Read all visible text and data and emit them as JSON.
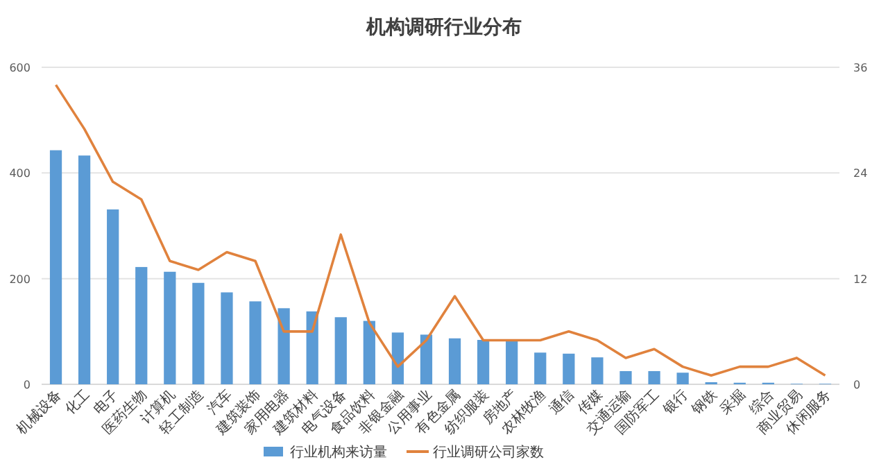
{
  "chart_data": {
    "type": "bar",
    "title": "机构调研行业分布",
    "categories": [
      "机械设备",
      "化工",
      "电子",
      "医药生物",
      "计算机",
      "轻工制造",
      "汽车",
      "建筑装饰",
      "家用电器",
      "建筑材料",
      "电气设备",
      "食品饮料",
      "非银金融",
      "公用事业",
      "有色金属",
      "纺织服装",
      "房地产",
      "农林牧渔",
      "通信",
      "传媒",
      "交通运输",
      "国防军工",
      "银行",
      "钢铁",
      "采掘",
      "综合",
      "商业贸易",
      "休闲服务"
    ],
    "series": [
      {
        "name": "行业机构来访量",
        "color": "#5b9bd5",
        "values": [
          443,
          433,
          331,
          222,
          213,
          192,
          174,
          157,
          144,
          138,
          127,
          120,
          98,
          94,
          87,
          84,
          84,
          60,
          58,
          51,
          25,
          25,
          22,
          4,
          3,
          3,
          1,
          1
        ]
      },
      {
        "name": "行业调研公司家数",
        "type": "line",
        "axis": "y2",
        "color": "#e0823d",
        "values": [
          34,
          29,
          23,
          21,
          14,
          13,
          15,
          14,
          6,
          6,
          17,
          7,
          2,
          5,
          10,
          5,
          5,
          5,
          6,
          5,
          3,
          4,
          2,
          1,
          2,
          2,
          3,
          1
        ]
      }
    ],
    "ylim": [
      0,
      600
    ],
    "yticks": [
      0,
      200,
      400,
      600
    ],
    "y2lim": [
      0,
      36
    ],
    "y2ticks": [
      0,
      12,
      24,
      36
    ],
    "grid": "y",
    "legend": "bottom",
    "marker": "none",
    "line_style": "solid"
  }
}
